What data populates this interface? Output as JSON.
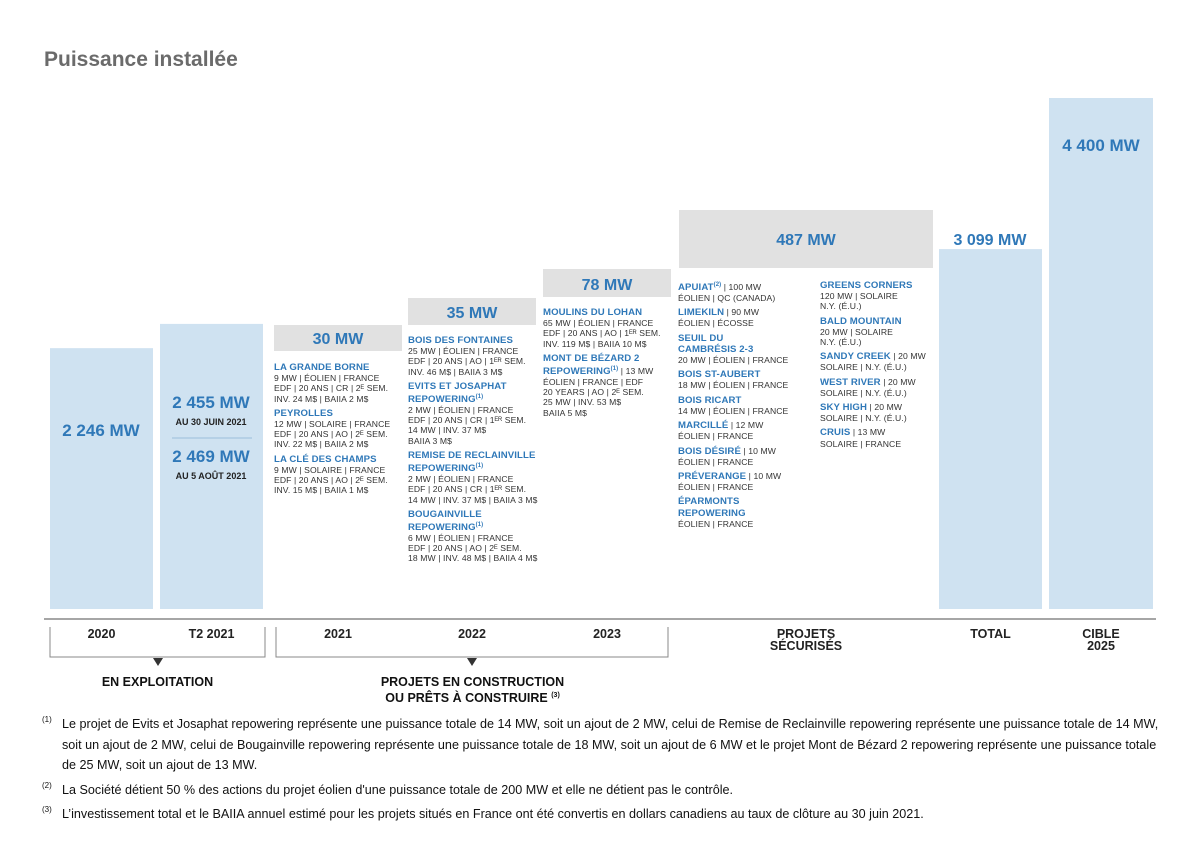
{
  "title": "Puissance installée",
  "chart_data": {
    "type": "bar",
    "bars": [
      {
        "key": "2020",
        "value": 2246,
        "label": "2 246 MW"
      },
      {
        "key": "T2 2021",
        "value": 2455,
        "label": "2 455 MW",
        "sublabel": "AU 30 JUIN 2021",
        "label2": "2 469 MW",
        "sublabel2": "AU 5 AOÛT 2021"
      },
      {
        "key": "2021",
        "value": 30,
        "label": "30 MW"
      },
      {
        "key": "2022",
        "value": 35,
        "label": "35 MW"
      },
      {
        "key": "2023",
        "value": 78,
        "label": "78 MW"
      },
      {
        "key": "PROJETS SÉCURISÉS",
        "value": 487,
        "label": "487 MW"
      },
      {
        "key": "TOTAL",
        "value": 3099,
        "label": "3 099 MW"
      },
      {
        "key": "CIBLE 2025",
        "value": 4400,
        "label": "4 400 MW"
      }
    ],
    "categories": [
      "2020",
      "T2 2021",
      "2021",
      "2022",
      "2023",
      "PROJETS\nSÉCURISÉS",
      "TOTAL",
      "CIBLE\n2025"
    ],
    "colors": {
      "blue_bar": "#cfe2f1",
      "gray_bar": "#e1e1e1",
      "blue_text": "#2f78b8",
      "axis": "#888888"
    }
  },
  "projects": {
    "y2021": [
      {
        "name": "LA GRANDE BORNE",
        "details": "9 MW | ÉOLIEN | FRANCE\nEDF | 20 ANS | CR | 2ᴱ SEM.\nINV. 24 M$ | BAIIA 2 M$"
      },
      {
        "name": "PEYROLLES",
        "details": "12 MW | SOLAIRE | FRANCE\nEDF | 20 ANS | AO | 2ᴱ SEM.\nINV. 22 M$ | BAIIA 2 M$"
      },
      {
        "name": "LA CLÉ DES CHAMPS",
        "details": "9 MW | SOLAIRE | FRANCE\nEDF | 20 ANS | AO | 2ᴱ SEM.\nINV. 15 M$ | BAIIA 1 M$"
      }
    ],
    "y2022": [
      {
        "name": "BOIS DES FONTAINES",
        "details": "25 MW | ÉOLIEN | FRANCE\nEDF | 20 ANS | AO | 1ᴱᴿ SEM.\nINV. 46 M$ | BAIIA 3 M$"
      },
      {
        "name": "EVITS ET JOSAPHAT\nREPOWERING",
        "sup": "(1)",
        "details": "2 MW | ÉOLIEN | FRANCE\nEDF | 20 ANS | CR | 1ᴱᴿ SEM.\n14 MW | INV. 37 M$\nBAIIA 3 M$"
      },
      {
        "name": "REMISE DE RECLAINVILLE\nREPOWERING",
        "sup": "(1)",
        "details": "2 MW | ÉOLIEN | FRANCE\nEDF | 20 ANS | CR | 1ᴱᴿ SEM.\n14 MW | INV. 37 M$ | BAIIA 3 M$"
      },
      {
        "name": "BOUGAINVILLE\nREPOWERING",
        "sup": "(1)",
        "details": "6 MW | ÉOLIEN | FRANCE\nEDF | 20 ANS | AO | 2ᴱ SEM.\n18 MW | INV. 48 M$ | BAIIA 4 M$"
      }
    ],
    "y2023": [
      {
        "name": "MOULINS DU LOHAN",
        "details": "65 MW | ÉOLIEN | FRANCE\nEDF | 20 ANS | AO | 1ᴱᴿ SEM.\nINV. 119 M$ | BAIIA 10 M$"
      },
      {
        "name": "MONT DE BÉZARD 2\nREPOWERING",
        "sup": "(1)",
        "inline": " | 13 MW",
        "details": "ÉOLIEN | FRANCE | EDF\n20 YEARS | AO | 2ᴱ SEM.\n25 MW | INV. 53 M$\nBAIIA 5 M$"
      }
    ],
    "secured_left": [
      {
        "name": "APUIAT",
        "sup": "(2)",
        "inline": " | 100 MW",
        "details": "ÉOLIEN | QC (CANADA)"
      },
      {
        "name": "LIMEKILN",
        "inline": " | 90 MW",
        "details": "ÉOLIEN | ÉCOSSE"
      },
      {
        "name": "SEUIL DU\nCAMBRÉSIS 2-3",
        "details": "20 MW | ÉOLIEN | FRANCE"
      },
      {
        "name": "BOIS ST-AUBERT",
        "details": "18 MW | ÉOLIEN | FRANCE"
      },
      {
        "name": "BOIS RICART",
        "details": "14 MW | ÉOLIEN | FRANCE"
      },
      {
        "name": "MARCILLÉ",
        "inline": " | 12 MW",
        "details": "ÉOLIEN | FRANCE"
      },
      {
        "name": "BOIS DÉSIRÉ",
        "inline": " | 10 MW",
        "details": "ÉOLIEN | FRANCE"
      },
      {
        "name": "PRÉVERANGE",
        "inline": " | 10 MW",
        "details": "ÉOLIEN | FRANCE"
      },
      {
        "name": "ÉPARMONTS\nREPOWERING",
        "details": "ÉOLIEN | FRANCE"
      }
    ],
    "secured_right": [
      {
        "name": "GREENS CORNERS",
        "details": "120 MW | SOLAIRE\nN.Y. (É.U.)"
      },
      {
        "name": "BALD MOUNTAIN",
        "details": "20 MW | SOLAIRE\nN.Y. (É.U.)"
      },
      {
        "name": "SANDY CREEK",
        "inline": " | 20 MW",
        "details": "SOLAIRE | N.Y. (É.U.)"
      },
      {
        "name": "WEST RIVER",
        "inline": " | 20 MW",
        "details": "SOLAIRE | N.Y. (É.U.)"
      },
      {
        "name": "SKY HIGH",
        "inline": " | 20 MW",
        "details": "SOLAIRE | N.Y. (É.U.)"
      },
      {
        "name": "CRUIS",
        "inline": " | 13 MW",
        "details": "SOLAIRE | FRANCE"
      }
    ]
  },
  "groups": {
    "exploitation": "EN EXPLOITATION",
    "construction_line1": "PROJETS EN CONSTRUCTION",
    "construction_line2": "OU PRÊTS À CONSTRUIRE",
    "construction_sup": "(3)"
  },
  "footnotes": [
    {
      "marker": "(1)",
      "text": "Le projet de Evits et Josaphat repowering représente une puissance totale de 14 MW, soit un ajout de 2 MW, celui de Remise de Reclainville repowering représente une puissance totale de 14 MW, soit un ajout de 2 MW, celui de Bougainville repowering représente une puissance totale de 18 MW, soit un ajout de 6 MW et le projet Mont de Bézard 2 repowering représente une puissance totale de 25 MW, soit un ajout de 13 MW."
    },
    {
      "marker": "(2)",
      "text": "La Société détient 50 % des actions du projet éolien d'une puissance totale de 200 MW et elle ne détient pas le contrôle."
    },
    {
      "marker": "(3)",
      "text": "L’investissement total et le BAIIA annuel estimé pour les projets situés en France ont été convertis en dollars canadiens au taux de clôture au 30 juin 2021."
    }
  ]
}
